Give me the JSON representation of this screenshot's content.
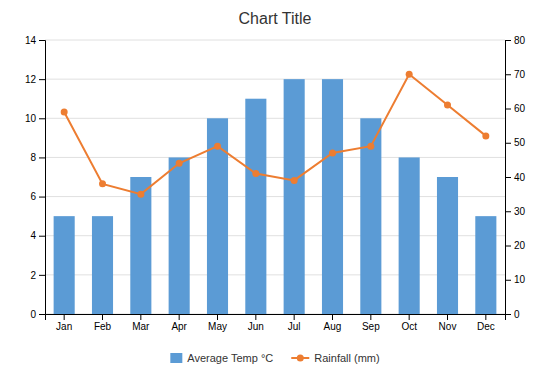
{
  "chart_data": {
    "type": "bar",
    "title": "Chart Title",
    "categories": [
      "Jan",
      "Feb",
      "Mar",
      "Apr",
      "May",
      "Jun",
      "Jul",
      "Aug",
      "Sep",
      "Oct",
      "Nov",
      "Dec"
    ],
    "series": [
      {
        "name": "Average Temp °C",
        "type": "bar",
        "color": "#5B9BD5",
        "values": [
          5,
          5,
          7,
          8,
          10,
          11,
          12,
          12,
          10,
          8,
          7,
          5
        ]
      },
      {
        "name": "Rainfall (mm)",
        "type": "line",
        "color": "#ED7D31",
        "marker": "circle",
        "axis": "y2",
        "values": [
          59,
          38,
          35,
          44,
          49,
          41,
          39,
          47,
          49,
          70,
          61,
          52
        ]
      }
    ],
    "ylim": [
      0,
      14
    ],
    "yticks": [
      0,
      2,
      4,
      6,
      8,
      10,
      12,
      14
    ],
    "y2lim": [
      0,
      80
    ],
    "y2ticks": [
      0,
      10,
      20,
      30,
      40,
      50,
      60,
      70,
      80
    ],
    "grid": true,
    "legend": "bottom"
  }
}
